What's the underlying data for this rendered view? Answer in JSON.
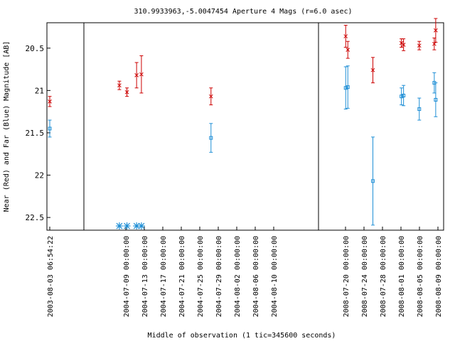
{
  "chart_data": {
    "type": "scatter",
    "title": "310.9933963,-5.0047454   Aperture 4 Mags (r=6.0 asec)",
    "xlabel": "Middle of observation (1 tic=345600 seconds)",
    "ylabel": "Near (Red) and Far (Blue) Magnitude [AB]",
    "y_axis": {
      "inverted": true,
      "ylim": [
        20.2,
        22.65
      ],
      "ticks": [
        20.5,
        21,
        21.5,
        22,
        22.5
      ],
      "tick_labels": [
        "20.5",
        "21",
        "21.5",
        "22",
        "22.5"
      ]
    },
    "panels": [
      {
        "x_ticks": [
          "2003-08-03 06:54:22"
        ],
        "near": [
          {
            "x": 0.0,
            "y": 21.13,
            "err": 0.06
          }
        ],
        "far": [
          {
            "x": 0.0,
            "y": 21.45,
            "err": 0.1
          }
        ],
        "far_limits": []
      },
      {
        "x_ticks": [
          "2004-07-09 00:00:00",
          "2004-07-13 00:00:00",
          "2004-07-17 00:00:00",
          "2004-07-21 00:00:00",
          "2004-07-25 00:00:00",
          "2004-07-29 00:00:00",
          "2004-08-02 00:00:00",
          "2004-08-06 00:00:00",
          "2004-08-10 00:00:00"
        ],
        "near": [
          {
            "x": 0.3,
            "y": 20.94,
            "err": 0.05
          },
          {
            "x": 1.4,
            "y": 21.02,
            "err": 0.05
          },
          {
            "x": 2.8,
            "y": 20.82,
            "err": 0.15
          },
          {
            "x": 3.5,
            "y": 20.81,
            "err": 0.22
          },
          {
            "x": 13.6,
            "y": 21.07,
            "err": 0.1
          },
          {
            "x": 37.1,
            "y": 20.76,
            "err": 0.15
          }
        ],
        "far": [
          {
            "x": 13.6,
            "y": 21.56,
            "err": 0.17
          },
          {
            "x": 37.1,
            "y": 22.07,
            "err": 0.52
          }
        ],
        "far_limits": [
          {
            "x": 0.3,
            "y": 22.6
          },
          {
            "x": 1.4,
            "y": 22.6
          },
          {
            "x": 2.8,
            "y": 22.6
          },
          {
            "x": 3.5,
            "y": 22.6
          }
        ]
      },
      {
        "x_ticks": [
          "2008-07-20 00:00:00",
          "2008-07-24 00:00:00",
          "2008-07-28 00:00:00",
          "2008-08-01 00:00:00",
          "2008-08-05 00:00:00",
          "2008-08-09 00:00:00"
        ],
        "near": [
          {
            "x": 4.8,
            "y": 20.36,
            "err": 0.13
          },
          {
            "x": 5.1,
            "y": 20.52,
            "err": 0.1
          },
          {
            "x": 12.6,
            "y": 20.44,
            "err": 0.05
          },
          {
            "x": 12.9,
            "y": 20.46,
            "err": 0.07
          },
          {
            "x": 15.1,
            "y": 20.47,
            "err": 0.05
          },
          {
            "x": 17.2,
            "y": 20.45,
            "err": 0.07
          },
          {
            "x": 17.4,
            "y": 20.29,
            "err": 0.14
          }
        ],
        "far": [
          {
            "x": 4.8,
            "y": 20.97,
            "err": 0.25
          },
          {
            "x": 5.1,
            "y": 20.96,
            "err": 0.25
          },
          {
            "x": 12.6,
            "y": 21.07,
            "err": 0.1
          },
          {
            "x": 12.9,
            "y": 21.06,
            "err": 0.12
          },
          {
            "x": 15.1,
            "y": 21.22,
            "err": 0.13
          },
          {
            "x": 17.2,
            "y": 20.91,
            "err": 0.12
          },
          {
            "x": 17.4,
            "y": 21.11,
            "err": 0.2
          }
        ],
        "far_limits": []
      }
    ],
    "colors": {
      "near": "#cc0000",
      "far": "#1f8fd6",
      "axis": "#000000",
      "limit": "#1f8fd6"
    }
  }
}
